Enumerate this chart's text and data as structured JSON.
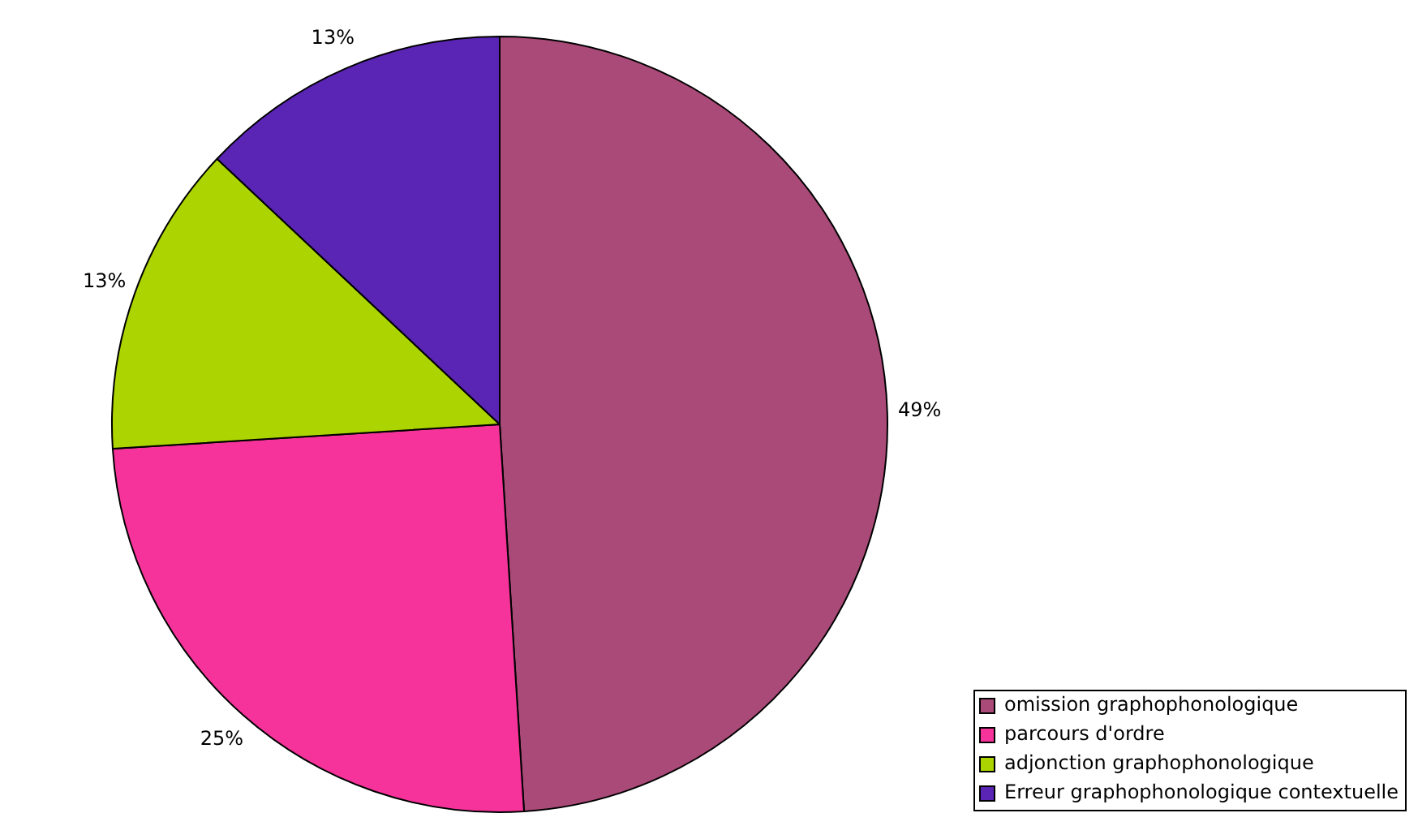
{
  "chart_data": {
    "type": "pie",
    "categories": [
      "omission graphophonologique",
      "parcours d'ordre",
      "adjonction graphophonologique",
      "Erreur graphophonologique contextuelle"
    ],
    "values": [
      49,
      25,
      13,
      13
    ],
    "colors": [
      "#a94a78",
      "#f5339a",
      "#acd400",
      "#5a24b4"
    ],
    "value_labels": [
      "49%",
      "25%",
      "13%",
      "13%"
    ],
    "legend": "bottom right"
  }
}
